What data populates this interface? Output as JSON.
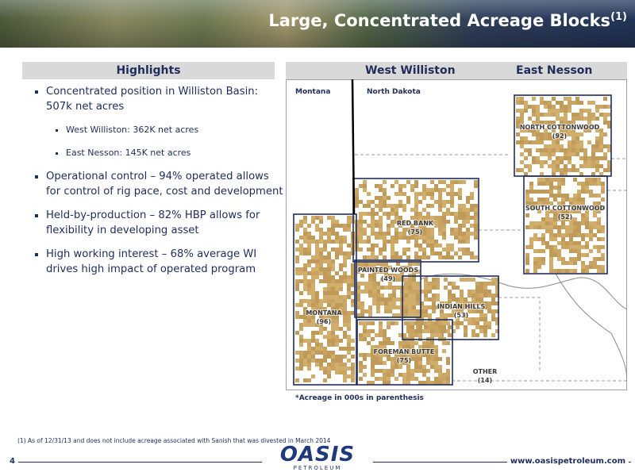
{
  "header": {
    "title": "Large, Concentrated Acreage Blocks",
    "title_superscript": "(1)"
  },
  "highlights": {
    "heading": "Highlights",
    "items": [
      {
        "text": "Concentrated position in Williston Basin: 507k net acres",
        "subitems": [
          "West Williston: 362K net acres",
          "East Nesson: 145K net acres"
        ]
      },
      {
        "text": "Operational control – 94% operated allows for control of rig pace, cost and development"
      },
      {
        "text": "Held-by-production – 82% HBP allows for flexibility in developing asset"
      },
      {
        "text": "High working interest – 68% average WI drives high impact of operated program"
      }
    ]
  },
  "map": {
    "headings": [
      "West Williston",
      "East Nesson"
    ],
    "state_labels": [
      "Montana",
      "North Dakota"
    ],
    "blocks": [
      {
        "name": "NORTH COTTONWOOD",
        "acreage": "(92)"
      },
      {
        "name": "SOUTH COTTONWOOD",
        "acreage": "(52)"
      },
      {
        "name": "RED BANK",
        "acreage": "(75)"
      },
      {
        "name": "PAINTED WOODS",
        "acreage": "(49)"
      },
      {
        "name": "INDIAN HILLS",
        "acreage": "(53)"
      },
      {
        "name": "MONTANA",
        "acreage": "(96)"
      },
      {
        "name": "FOREMAN BUTTE",
        "acreage": "(75)"
      },
      {
        "name": "OTHER",
        "acreage": "(14)"
      }
    ],
    "note": "*Acreage in 000s in parenthesis"
  },
  "footer": {
    "footnote": "(1) As of 12/31/13 and does not include acreage associated with Sanish that was divested in March 2014",
    "page_number": "4",
    "logo": {
      "name": "OASIS",
      "tagline": "PETROLEUM"
    },
    "url": "www.oasispetroleum.com"
  }
}
